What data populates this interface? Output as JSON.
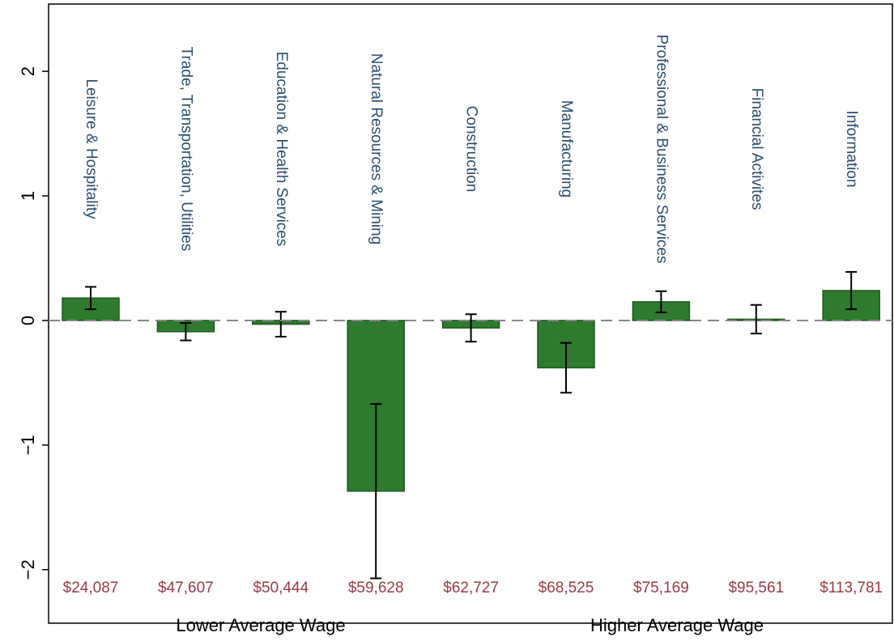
{
  "chart_data": {
    "type": "bar",
    "categories": [
      "Leisure & Hospitality",
      "Trade, Transportation, Utilities",
      "Education & Health Services",
      "Natural Resources & Mining",
      "Construction",
      "Manufacturing",
      "Professional & Business Services",
      "Financial Activites",
      "Information"
    ],
    "values": [
      0.18,
      -0.09,
      -0.03,
      -1.37,
      -0.06,
      -0.38,
      0.15,
      0.01,
      0.24
    ],
    "errors": [
      0.09,
      0.07,
      0.1,
      0.7,
      0.11,
      0.2,
      0.085,
      0.115,
      0.15
    ],
    "annotations": [
      "$24,087",
      "$47,607",
      "$50,444",
      "$59,628",
      "$62,727",
      "$68,525",
      "$75,169",
      "$95,561",
      "$113,781"
    ],
    "x_group_labels": [
      "Lower Average Wage",
      "Higher Average Wage"
    ],
    "color": "#2e7a2e",
    "ylim": [
      -2.43,
      2.54
    ],
    "yticks": [
      {
        "value": -2,
        "label": "−2"
      },
      {
        "value": -1,
        "label": "−1"
      },
      0,
      1,
      2
    ],
    "reference_line": 0
  }
}
